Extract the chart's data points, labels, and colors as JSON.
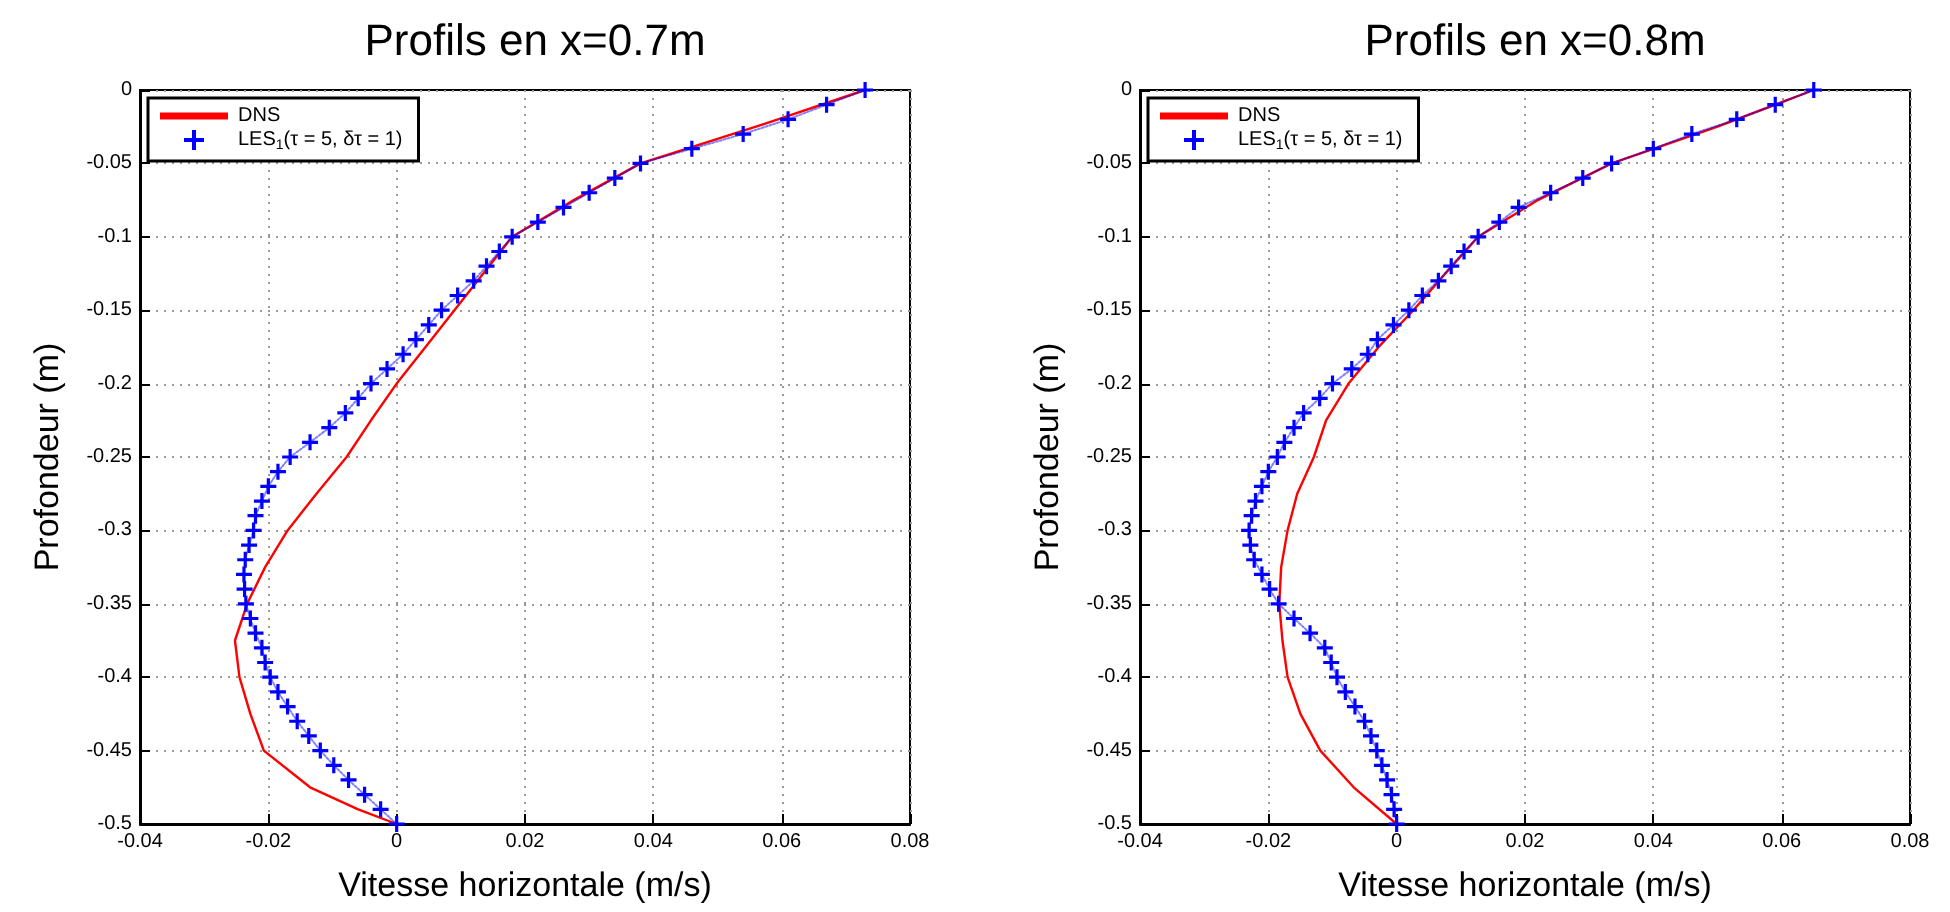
{
  "chart_data": [
    {
      "type": "line",
      "title": "Profils en x=0.7m",
      "xlabel": "Vitesse horizontale (m/s)",
      "ylabel": "Profondeur (m)",
      "xlim": [
        -0.04,
        0.08
      ],
      "xticks": [
        -0.04,
        -0.02,
        0,
        0.02,
        0.04,
        0.06,
        0.08
      ],
      "ylim": [
        -0.5,
        0
      ],
      "yticks": [
        -0.5,
        -0.45,
        -0.4,
        -0.35,
        -0.3,
        -0.25,
        -0.2,
        -0.15,
        -0.1,
        -0.05,
        0
      ],
      "grid": true,
      "legend": "top left",
      "series": [
        {
          "name": "DNS",
          "color": "#ff0000",
          "marker": "none",
          "line_style": "solid",
          "x": [
            0.073,
            0.056,
            0.038,
            0.0276,
            0.018,
            0.0135,
            0.009,
            0.0045,
            0,
            -0.004,
            -0.0078,
            -0.0125,
            -0.017,
            -0.0205,
            -0.0233,
            -0.0252,
            -0.0245,
            -0.0228,
            -0.0207,
            -0.0135,
            -0.006,
            0
          ],
          "values": [
            0,
            -0.025,
            -0.05,
            -0.075,
            -0.1,
            -0.125,
            -0.15,
            -0.175,
            -0.2,
            -0.225,
            -0.25,
            -0.275,
            -0.3,
            -0.325,
            -0.35,
            -0.375,
            -0.4,
            -0.425,
            -0.45,
            -0.475,
            -0.49,
            -0.5
          ]
        },
        {
          "name": "LES$_{1}$(τ = 5, δτ = 1)",
          "color": "#0000ff",
          "marker": "cross",
          "line_style": "dotted",
          "x": [
            0.073,
            0.067,
            0.061,
            0.054,
            0.046,
            0.038,
            0.034,
            0.03,
            0.026,
            0.022,
            0.018,
            0.016,
            0.014,
            0.012,
            0.0095,
            0.007,
            0.005,
            0.003,
            0.001,
            -0.0015,
            -0.004,
            -0.006,
            -0.008,
            -0.0105,
            -0.0135,
            -0.0166,
            -0.0185,
            -0.02,
            -0.021,
            -0.022,
            -0.0223,
            -0.023,
            -0.0236,
            -0.0238,
            -0.0237,
            -0.0235,
            -0.0228,
            -0.022,
            -0.021,
            -0.0205,
            -0.0197,
            -0.0185,
            -0.017,
            -0.0155,
            -0.0137,
            -0.0119,
            -0.0098,
            -0.0075,
            -0.005,
            -0.0025,
            0
          ],
          "values": [
            0,
            -0.01,
            -0.02,
            -0.03,
            -0.04,
            -0.05,
            -0.06,
            -0.07,
            -0.08,
            -0.09,
            -0.1,
            -0.11,
            -0.12,
            -0.13,
            -0.14,
            -0.15,
            -0.16,
            -0.17,
            -0.18,
            -0.19,
            -0.2,
            -0.21,
            -0.22,
            -0.23,
            -0.24,
            -0.25,
            -0.26,
            -0.27,
            -0.28,
            -0.29,
            -0.3,
            -0.31,
            -0.32,
            -0.33,
            -0.34,
            -0.35,
            -0.36,
            -0.37,
            -0.38,
            -0.39,
            -0.4,
            -0.41,
            -0.42,
            -0.43,
            -0.44,
            -0.45,
            -0.46,
            -0.47,
            -0.48,
            -0.49,
            -0.5
          ]
        }
      ]
    },
    {
      "type": "line",
      "title": "Profils en x=0.8m",
      "xlabel": "Vitesse horizontale (m/s)",
      "ylabel": "Profondeur (m)",
      "xlim": [
        -0.04,
        0.08
      ],
      "xticks": [
        -0.04,
        -0.02,
        0,
        0.02,
        0.04,
        0.06,
        0.08
      ],
      "ylim": [
        -0.5,
        0
      ],
      "yticks": [
        -0.5,
        -0.45,
        -0.4,
        -0.35,
        -0.3,
        -0.25,
        -0.2,
        -0.15,
        -0.1,
        -0.05,
        0
      ],
      "grid": true,
      "legend": "top left",
      "series": [
        {
          "name": "DNS",
          "color": "#ff0000",
          "marker": "none",
          "line_style": "solid",
          "x": [
            0.065,
            0.05,
            0.0335,
            0.022,
            0.0127,
            0.0076,
            0.0026,
            -0.0028,
            -0.0075,
            -0.011,
            -0.0129,
            -0.0155,
            -0.017,
            -0.018,
            -0.0183,
            -0.0178,
            -0.017,
            -0.015,
            -0.0119,
            -0.0067,
            0
          ],
          "values": [
            0,
            -0.025,
            -0.05,
            -0.075,
            -0.1,
            -0.125,
            -0.15,
            -0.175,
            -0.2,
            -0.225,
            -0.25,
            -0.275,
            -0.3,
            -0.325,
            -0.35,
            -0.375,
            -0.4,
            -0.425,
            -0.45,
            -0.475,
            -0.5
          ]
        },
        {
          "name": "LES$_{1}$(τ = 5, δτ = 1)",
          "color": "#0000ff",
          "marker": "cross",
          "line_style": "dotted",
          "x": [
            0.065,
            0.059,
            0.053,
            0.046,
            0.04,
            0.0335,
            0.029,
            0.024,
            0.019,
            0.016,
            0.0127,
            0.0105,
            0.0085,
            0.0065,
            0.004,
            0.0019,
            -0.0005,
            -0.003,
            -0.0045,
            -0.007,
            -0.01,
            -0.012,
            -0.0145,
            -0.016,
            -0.0175,
            -0.0186,
            -0.02,
            -0.021,
            -0.022,
            -0.0226,
            -0.023,
            -0.0228,
            -0.0222,
            -0.021,
            -0.0198,
            -0.0184,
            -0.016,
            -0.0135,
            -0.0112,
            -0.0102,
            -0.0093,
            -0.008,
            -0.0065,
            -0.005,
            -0.004,
            -0.0031,
            -0.0023,
            -0.0015,
            -0.0008,
            -0.0004,
            0
          ],
          "values": [
            0,
            -0.01,
            -0.02,
            -0.03,
            -0.04,
            -0.05,
            -0.06,
            -0.07,
            -0.08,
            -0.09,
            -0.1,
            -0.11,
            -0.12,
            -0.13,
            -0.14,
            -0.15,
            -0.16,
            -0.17,
            -0.18,
            -0.19,
            -0.2,
            -0.21,
            -0.22,
            -0.23,
            -0.24,
            -0.25,
            -0.26,
            -0.27,
            -0.28,
            -0.29,
            -0.3,
            -0.31,
            -0.32,
            -0.33,
            -0.34,
            -0.35,
            -0.36,
            -0.37,
            -0.38,
            -0.39,
            -0.4,
            -0.41,
            -0.42,
            -0.43,
            -0.44,
            -0.45,
            -0.46,
            -0.47,
            -0.48,
            -0.49,
            -0.5
          ]
        }
      ]
    }
  ]
}
